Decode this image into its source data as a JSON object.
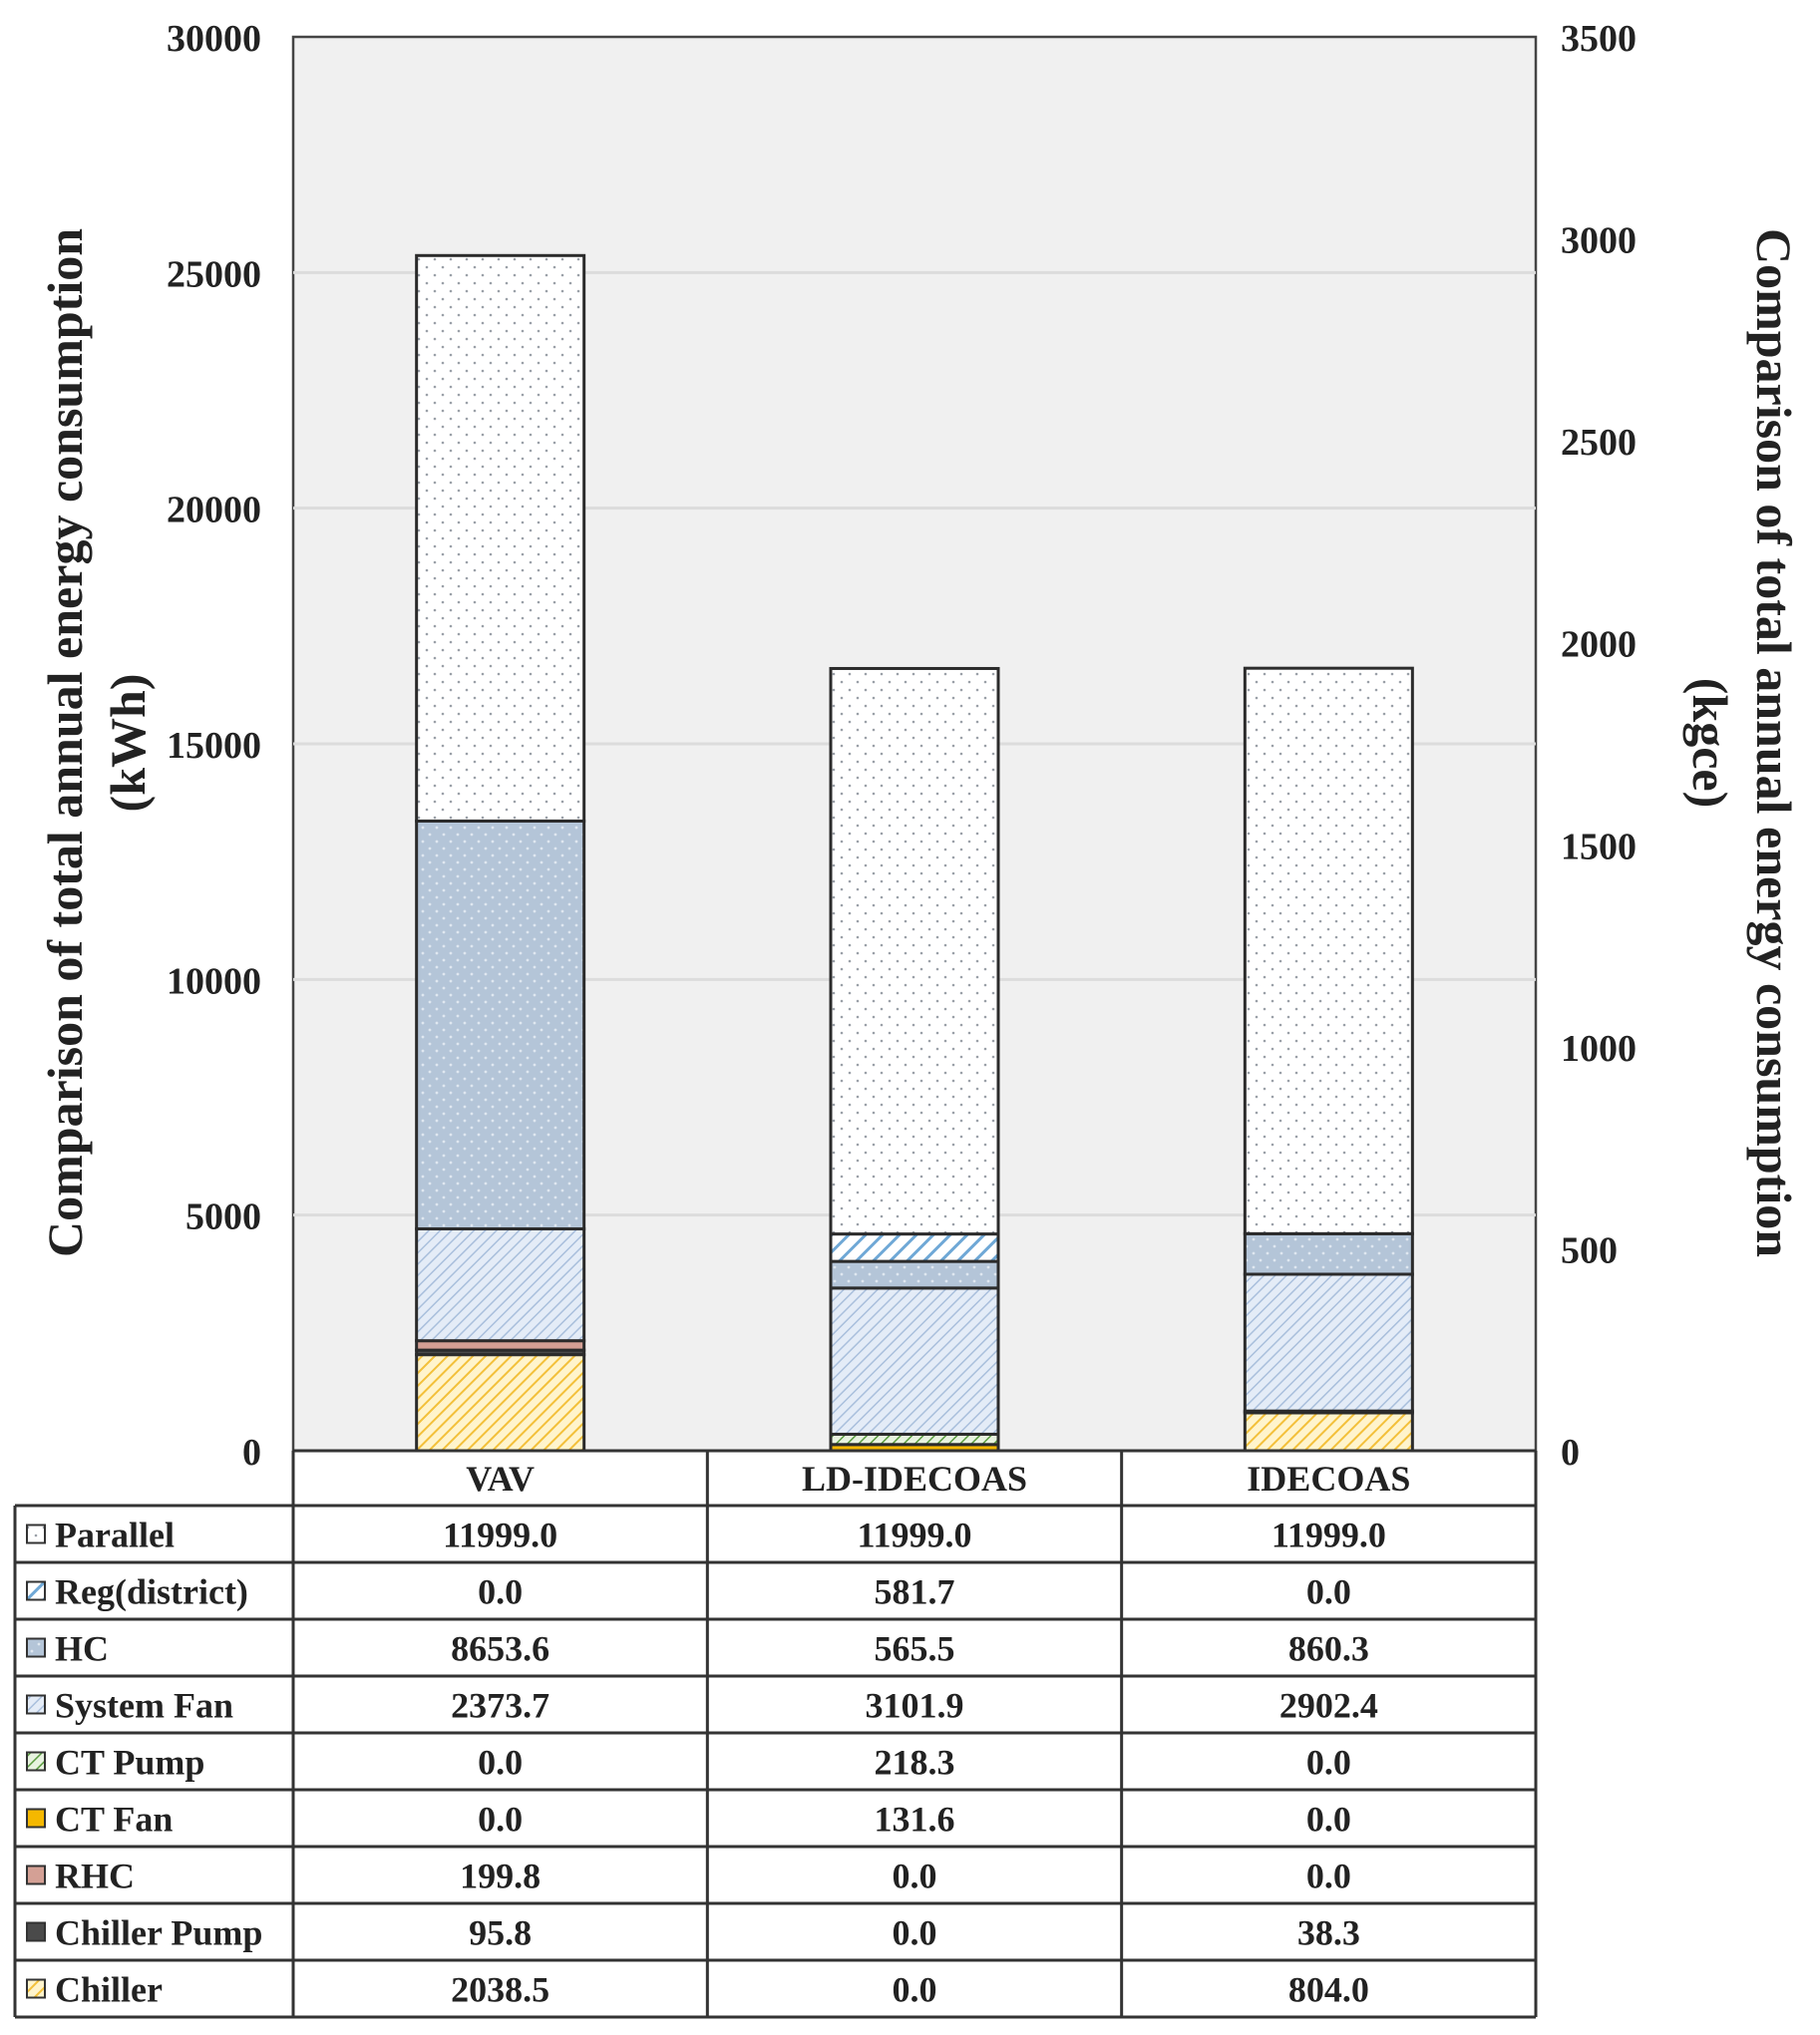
{
  "chart_data": {
    "type": "bar",
    "stacked": true,
    "categories": [
      "VAV",
      "LD-IDECOAS",
      "IDECOAS"
    ],
    "ylabel_left": "Comparison of total annual energy consumption",
    "ylabel_left_unit": "(kWh)",
    "ylabel_right": "Comparison of total annual energy consumption",
    "ylabel_right_unit": "(kgce)",
    "ylim_left": [
      0,
      30000
    ],
    "yticks_left": [
      "0",
      "5000",
      "10000",
      "15000",
      "20000",
      "25000",
      "30000"
    ],
    "ylim_right": [
      0,
      3500
    ],
    "yticks_right": [
      "0",
      "500",
      "1000",
      "1500",
      "2000",
      "2500",
      "3000",
      "3500"
    ],
    "grid": true,
    "series": [
      {
        "name": "Chiller",
        "values": [
          2038.5,
          0.0,
          804.0
        ],
        "labels": [
          "2038.5",
          "0.0",
          "804.0"
        ],
        "color": "#f5c542",
        "pattern": "diag-yellow"
      },
      {
        "name": "Chiller Pump",
        "values": [
          95.8,
          0.0,
          38.3
        ],
        "labels": [
          "95.8",
          "0.0",
          "38.3"
        ],
        "color": "#555555",
        "pattern": "solid-dark"
      },
      {
        "name": "RHC",
        "values": [
          199.8,
          0.0,
          0.0
        ],
        "labels": [
          "199.8",
          "0.0",
          "0.0"
        ],
        "color": "#d9a89c",
        "pattern": "solid-pink"
      },
      {
        "name": "CT Fan",
        "values": [
          0.0,
          131.6,
          0.0
        ],
        "labels": [
          "0.0",
          "131.6",
          "0.0"
        ],
        "color": "#f5b800",
        "pattern": "solid-yellow"
      },
      {
        "name": "CT Pump",
        "values": [
          0.0,
          218.3,
          0.0
        ],
        "labels": [
          "0.0",
          "218.3",
          "0.0"
        ],
        "color": "#6aa84f",
        "pattern": "diag-green"
      },
      {
        "name": "System Fan",
        "values": [
          2373.7,
          3101.9,
          2902.4
        ],
        "labels": [
          "2373.7",
          "3101.9",
          "2902.4"
        ],
        "color": "#dbe6f5",
        "pattern": "diag-lightblue"
      },
      {
        "name": "HC",
        "values": [
          8653.6,
          565.5,
          860.3
        ],
        "labels": [
          "8653.6",
          "565.5",
          "860.3"
        ],
        "color": "#b8c9dc",
        "pattern": "dots-steel"
      },
      {
        "name": "Reg(district)",
        "values": [
          0.0,
          581.7,
          0.0
        ],
        "labels": [
          "0.0",
          "581.7",
          "0.0"
        ],
        "color": "#7fb3dc",
        "pattern": "diag-blue"
      },
      {
        "name": "Parallel",
        "values": [
          11999.0,
          11999.0,
          11999.0
        ],
        "labels": [
          "11999.0",
          "11999.0",
          "11999.0"
        ],
        "color": "#ffffff",
        "pattern": "dots-white"
      }
    ],
    "table_row_order": [
      "Parallel",
      "Reg(district)",
      "HC",
      "System Fan",
      "CT Pump",
      "CT Fan",
      "RHC",
      "Chiller Pump",
      "Chiller"
    ]
  }
}
